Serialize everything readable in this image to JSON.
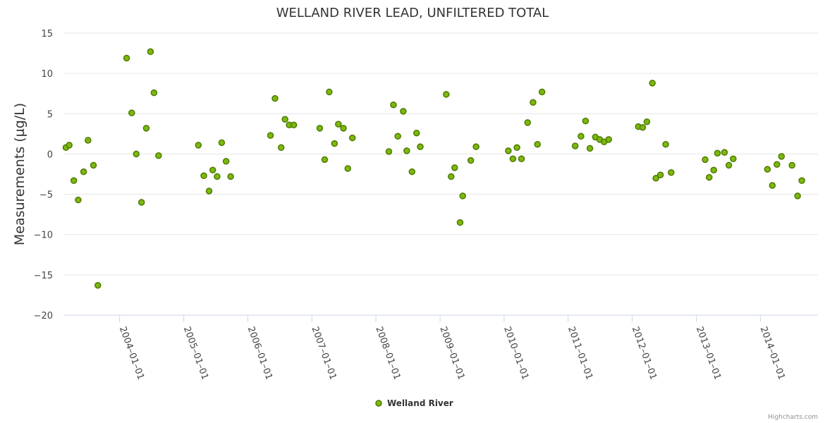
{
  "chart_data": {
    "type": "scatter",
    "title": "WELLAND RIVER LEAD, UNFILTERED TOTAL",
    "xlabel": "",
    "ylabel": "Measurements (µg/L)",
    "ylim": [
      -20,
      15
    ],
    "yticks": [
      15,
      10,
      5,
      0,
      -5,
      -10,
      -15,
      -20
    ],
    "xlim": [
      "2003-02-15",
      "2014-11-25"
    ],
    "xticks": [
      "2004-01-01",
      "2005-01-01",
      "2006-01-01",
      "2007-01-01",
      "2008-01-01",
      "2009-01-01",
      "2010-01-01",
      "2011-01-01",
      "2012-01-01",
      "2013-01-01",
      "2014-01-01"
    ],
    "grid": true,
    "legend": "bottom-center",
    "colors": {
      "marker_fill": "#7cb90e",
      "marker_stroke": "#4e7a00",
      "grid": "#e6e6e6",
      "axis": "#ccd6eb"
    },
    "series": [
      {
        "name": "Welland River",
        "points": [
          [
            "2003-03-01",
            0.8
          ],
          [
            "2003-03-20",
            1.1
          ],
          [
            "2003-04-15",
            -3.3
          ],
          [
            "2003-05-10",
            -5.7
          ],
          [
            "2003-06-10",
            -2.2
          ],
          [
            "2003-07-05",
            1.7
          ],
          [
            "2003-08-05",
            -1.4
          ],
          [
            "2003-08-30",
            -16.3
          ],
          [
            "2004-02-10",
            11.9
          ],
          [
            "2004-03-10",
            5.1
          ],
          [
            "2004-04-05",
            0.0
          ],
          [
            "2004-05-05",
            -6.0
          ],
          [
            "2004-06-01",
            3.2
          ],
          [
            "2004-06-25",
            12.7
          ],
          [
            "2004-07-15",
            7.6
          ],
          [
            "2004-08-10",
            -0.2
          ],
          [
            "2005-03-25",
            1.1
          ],
          [
            "2005-04-25",
            -2.7
          ],
          [
            "2005-05-25",
            -4.6
          ],
          [
            "2005-06-15",
            -2.0
          ],
          [
            "2005-07-10",
            -2.8
          ],
          [
            "2005-08-05",
            1.4
          ],
          [
            "2005-08-30",
            -0.9
          ],
          [
            "2005-09-25",
            -2.8
          ],
          [
            "2006-05-10",
            2.3
          ],
          [
            "2006-06-05",
            6.9
          ],
          [
            "2006-07-10",
            0.8
          ],
          [
            "2006-08-01",
            4.3
          ],
          [
            "2006-08-25",
            3.6
          ],
          [
            "2006-09-20",
            3.6
          ],
          [
            "2007-02-15",
            3.2
          ],
          [
            "2007-03-15",
            -0.7
          ],
          [
            "2007-04-10",
            7.7
          ],
          [
            "2007-05-10",
            1.3
          ],
          [
            "2007-06-01",
            3.7
          ],
          [
            "2007-06-30",
            3.2
          ],
          [
            "2007-07-25",
            -1.8
          ],
          [
            "2007-08-20",
            2.0
          ],
          [
            "2008-03-15",
            0.3
          ],
          [
            "2008-04-10",
            6.1
          ],
          [
            "2008-05-05",
            2.2
          ],
          [
            "2008-06-05",
            5.3
          ],
          [
            "2008-06-25",
            0.4
          ],
          [
            "2008-07-25",
            -2.2
          ],
          [
            "2008-08-20",
            2.6
          ],
          [
            "2008-09-10",
            0.9
          ],
          [
            "2009-02-05",
            7.4
          ],
          [
            "2009-03-05",
            -2.8
          ],
          [
            "2009-03-25",
            -1.7
          ],
          [
            "2009-04-25",
            -8.5
          ],
          [
            "2009-05-10",
            -5.2
          ],
          [
            "2009-06-25",
            -0.8
          ],
          [
            "2009-07-25",
            0.9
          ],
          [
            "2010-01-25",
            0.4
          ],
          [
            "2010-02-20",
            -0.6
          ],
          [
            "2010-03-15",
            0.8
          ],
          [
            "2010-04-10",
            -0.6
          ],
          [
            "2010-05-15",
            3.9
          ],
          [
            "2010-06-15",
            6.4
          ],
          [
            "2010-07-10",
            1.2
          ],
          [
            "2010-08-05",
            7.7
          ],
          [
            "2011-02-10",
            1.0
          ],
          [
            "2011-03-15",
            2.2
          ],
          [
            "2011-04-10",
            4.1
          ],
          [
            "2011-05-05",
            0.7
          ],
          [
            "2011-06-05",
            2.1
          ],
          [
            "2011-06-30",
            1.8
          ],
          [
            "2011-07-25",
            1.5
          ],
          [
            "2011-08-20",
            1.8
          ],
          [
            "2012-02-05",
            3.4
          ],
          [
            "2012-03-01",
            3.3
          ],
          [
            "2012-03-25",
            4.0
          ],
          [
            "2012-04-25",
            8.8
          ],
          [
            "2012-05-15",
            -3.0
          ],
          [
            "2012-06-10",
            -2.6
          ],
          [
            "2012-07-10",
            1.2
          ],
          [
            "2012-08-10",
            -2.3
          ],
          [
            "2013-02-20",
            -0.7
          ],
          [
            "2013-03-15",
            -2.9
          ],
          [
            "2013-04-10",
            -2.0
          ],
          [
            "2013-05-01",
            0.1
          ],
          [
            "2013-06-10",
            0.2
          ],
          [
            "2013-07-05",
            -1.4
          ],
          [
            "2013-07-30",
            -0.6
          ],
          [
            "2014-02-10",
            -1.9
          ],
          [
            "2014-03-10",
            -3.9
          ],
          [
            "2014-04-05",
            -1.3
          ],
          [
            "2014-05-01",
            -0.3
          ],
          [
            "2014-06-30",
            -1.4
          ],
          [
            "2014-08-01",
            -5.2
          ],
          [
            "2014-08-25",
            -3.3
          ]
        ]
      }
    ]
  },
  "credits": "Highcharts.com"
}
